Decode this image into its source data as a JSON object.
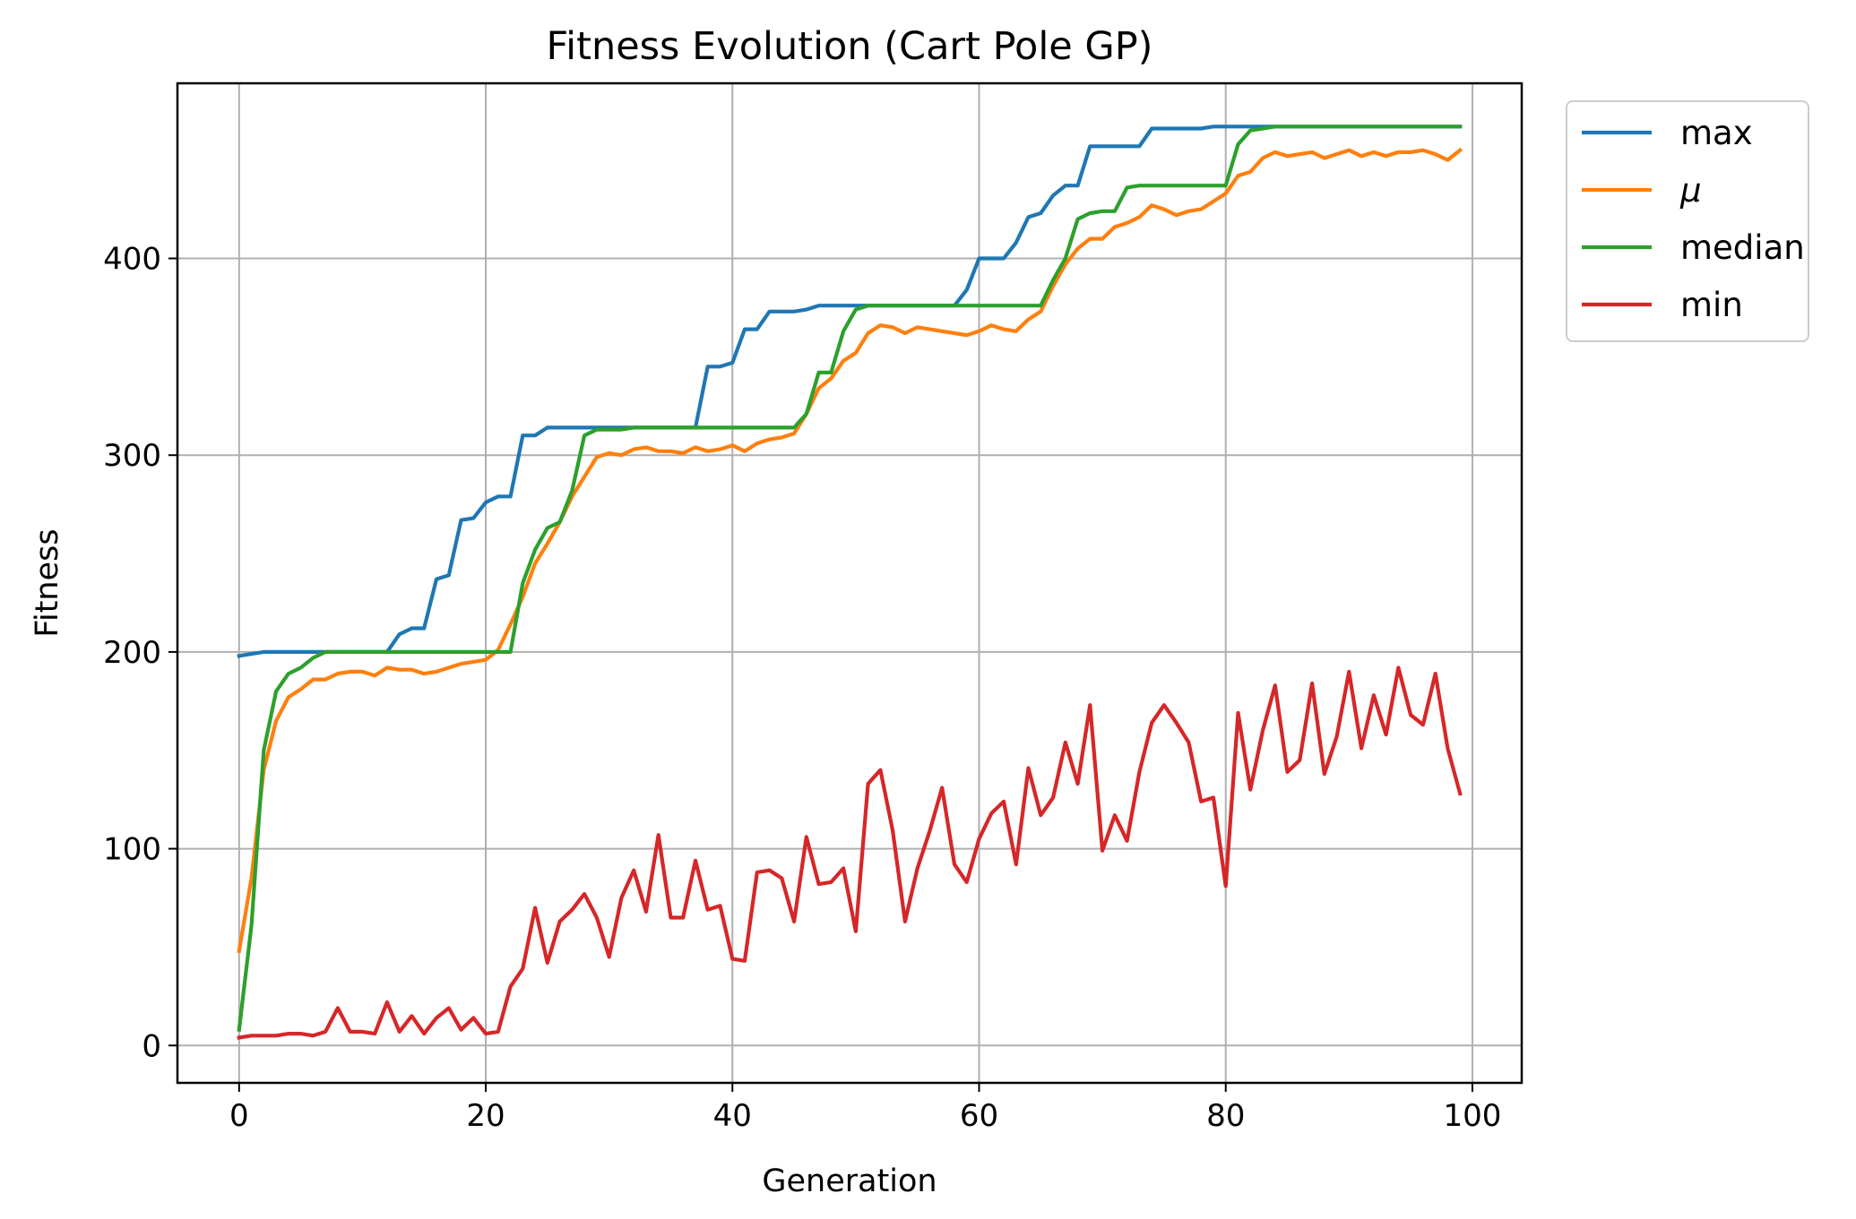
{
  "chart_data": {
    "type": "line",
    "title": "Fitness Evolution (Cart Pole GP)",
    "xlabel": "Generation",
    "ylabel": "Fitness",
    "xlim": [
      -5,
      104
    ],
    "ylim": [
      -19,
      489
    ],
    "xticks": [
      0,
      20,
      40,
      60,
      80,
      100
    ],
    "yticks": [
      0,
      100,
      200,
      300,
      400
    ],
    "grid": true,
    "legend_position": "outside right, top",
    "x": [
      0,
      1,
      2,
      3,
      4,
      5,
      6,
      7,
      8,
      9,
      10,
      11,
      12,
      13,
      14,
      15,
      16,
      17,
      18,
      19,
      20,
      21,
      22,
      23,
      24,
      25,
      26,
      27,
      28,
      29,
      30,
      31,
      32,
      33,
      34,
      35,
      36,
      37,
      38,
      39,
      40,
      41,
      42,
      43,
      44,
      45,
      46,
      47,
      48,
      49,
      50,
      51,
      52,
      53,
      54,
      55,
      56,
      57,
      58,
      59,
      60,
      61,
      62,
      63,
      64,
      65,
      66,
      67,
      68,
      69,
      70,
      71,
      72,
      73,
      74,
      75,
      76,
      77,
      78,
      79,
      80,
      81,
      82,
      83,
      84,
      85,
      86,
      87,
      88,
      89,
      90,
      91,
      92,
      93,
      94,
      95,
      96,
      97,
      98,
      99
    ],
    "series": [
      {
        "name": "max",
        "color": "#1f77b4",
        "values": [
          198,
          199,
          200,
          200,
          200,
          200,
          200,
          200,
          200,
          200,
          200,
          200,
          200,
          209,
          212,
          212,
          237,
          239,
          267,
          268,
          276,
          279,
          279,
          310,
          310,
          314,
          314,
          314,
          314,
          314,
          314,
          314,
          314,
          314,
          314,
          314,
          314,
          314,
          345,
          345,
          347,
          364,
          364,
          373,
          373,
          373,
          374,
          376,
          376,
          376,
          376,
          376,
          376,
          376,
          376,
          376,
          376,
          376,
          376,
          384,
          400,
          400,
          400,
          408,
          421,
          423,
          432,
          437,
          437,
          457,
          457,
          457,
          457,
          457,
          466,
          466,
          466,
          466,
          466,
          467,
          467,
          467,
          467,
          467,
          467,
          467,
          467,
          467,
          467,
          467,
          467,
          467,
          467,
          467,
          467,
          467,
          467,
          467,
          467,
          467
        ]
      },
      {
        "name": "μ",
        "color": "#ff7f0e",
        "values": [
          48,
          85,
          140,
          165,
          177,
          181,
          186,
          186,
          189,
          190,
          190,
          188,
          192,
          191,
          191,
          189,
          190,
          192,
          194,
          195,
          196,
          201,
          214,
          228,
          245,
          255,
          266,
          279,
          289,
          299,
          301,
          300,
          303,
          304,
          302,
          302,
          301,
          304,
          302,
          303,
          305,
          302,
          306,
          308,
          309,
          311,
          321,
          334,
          339,
          348,
          352,
          362,
          366,
          365,
          362,
          365,
          364,
          363,
          362,
          361,
          363,
          366,
          364,
          363,
          369,
          373,
          386,
          397,
          405,
          410,
          410,
          416,
          418,
          421,
          427,
          425,
          422,
          424,
          425,
          429,
          433,
          442,
          444,
          451,
          454,
          452,
          453,
          454,
          451,
          453,
          455,
          452,
          454,
          452,
          454,
          454,
          455,
          453,
          450,
          455
        ]
      },
      {
        "name": "median",
        "color": "#2ca02c",
        "values": [
          8,
          61,
          150,
          180,
          189,
          192,
          197,
          200,
          200,
          200,
          200,
          200,
          200,
          200,
          200,
          200,
          200,
          200,
          200,
          200,
          200,
          200,
          200,
          235,
          252,
          263,
          266,
          282,
          310,
          313,
          313,
          313,
          314,
          314,
          314,
          314,
          314,
          314,
          314,
          314,
          314,
          314,
          314,
          314,
          314,
          314,
          321,
          342,
          342,
          363,
          374,
          376,
          376,
          376,
          376,
          376,
          376,
          376,
          376,
          376,
          376,
          376,
          376,
          376,
          376,
          376,
          389,
          400,
          420,
          423,
          424,
          424,
          436,
          437,
          437,
          437,
          437,
          437,
          437,
          437,
          437,
          458,
          465,
          466,
          467,
          467,
          467,
          467,
          467,
          467,
          467,
          467,
          467,
          467,
          467,
          467,
          467,
          467,
          467,
          467
        ]
      },
      {
        "name": "min",
        "color": "#d62728",
        "values": [
          4,
          5,
          5,
          5,
          6,
          6,
          5,
          7,
          19,
          7,
          7,
          6,
          22,
          7,
          15,
          6,
          14,
          19,
          8,
          14,
          6,
          7,
          30,
          39,
          70,
          42,
          63,
          69,
          77,
          65,
          45,
          75,
          89,
          68,
          107,
          65,
          65,
          94,
          69,
          71,
          44,
          43,
          88,
          89,
          85,
          63,
          106,
          82,
          83,
          90,
          58,
          133,
          140,
          109,
          63,
          90,
          109,
          131,
          92,
          83,
          105,
          118,
          124,
          92,
          141,
          117,
          126,
          154,
          133,
          173,
          99,
          117,
          104,
          139,
          164,
          173,
          164,
          154,
          124,
          126,
          81,
          169,
          130,
          160,
          183,
          139,
          145,
          184,
          138,
          157,
          190,
          151,
          178,
          158,
          192,
          168,
          163,
          189,
          151,
          128
        ]
      }
    ]
  }
}
